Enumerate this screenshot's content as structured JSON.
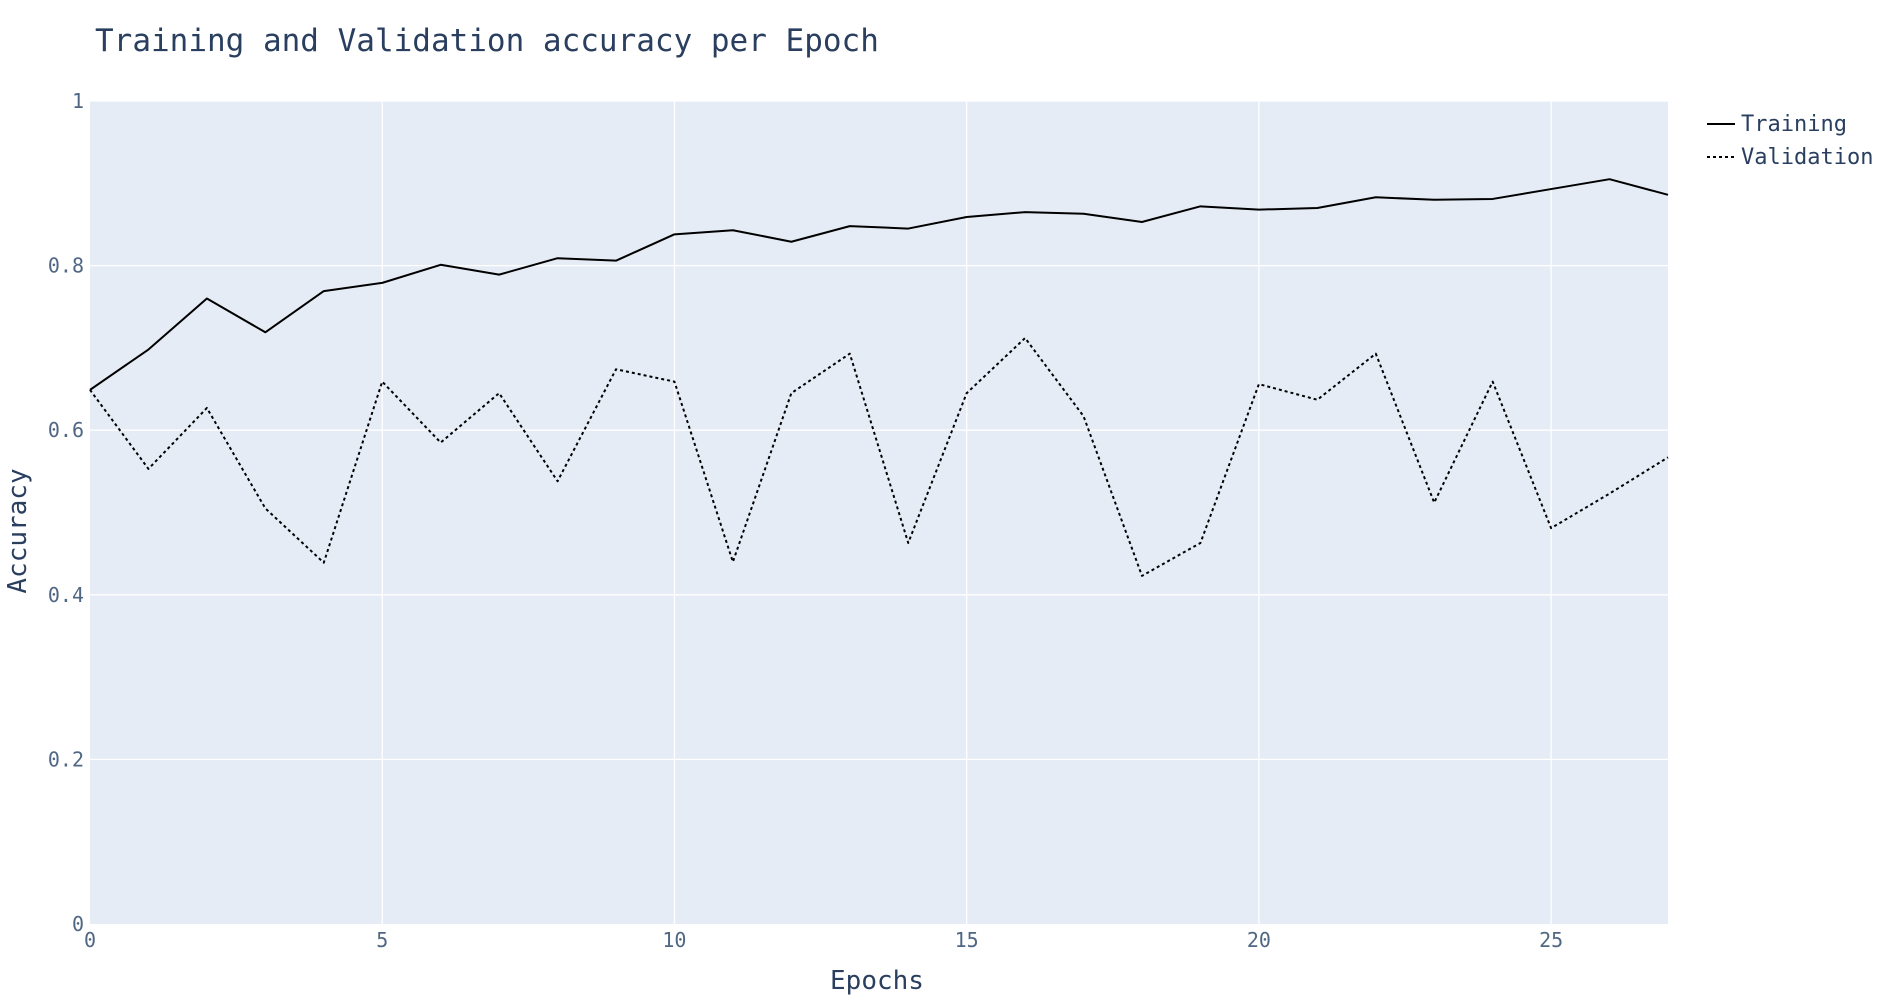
{
  "chart_data": {
    "type": "line",
    "title": "Training and Validation accuracy per Epoch",
    "xlabel": "Epochs",
    "ylabel": "Accuracy",
    "xlim": [
      0,
      27
    ],
    "ylim": [
      0,
      1
    ],
    "xticks": [
      0,
      5,
      10,
      15,
      20,
      25
    ],
    "xtick_labels": [
      "0",
      "5",
      "10",
      "15",
      "20",
      "25"
    ],
    "yticks": [
      0,
      0.2,
      0.4,
      0.6,
      0.8,
      1
    ],
    "ytick_labels": [
      "0",
      "0.2",
      "0.4",
      "0.6",
      "0.8",
      "1"
    ],
    "grid": true,
    "legend_position": "top-right",
    "x": [
      0,
      1,
      2,
      3,
      4,
      5,
      6,
      7,
      8,
      9,
      10,
      11,
      12,
      13,
      14,
      15,
      16,
      17,
      18,
      19,
      20,
      21,
      22,
      23,
      24,
      25,
      26,
      27
    ],
    "series": [
      {
        "name": "Training",
        "dash": "solid",
        "color": "#000000",
        "values": [
          0.649,
          0.698,
          0.76,
          0.719,
          0.769,
          0.779,
          0.801,
          0.789,
          0.809,
          0.806,
          0.838,
          0.843,
          0.829,
          0.848,
          0.845,
          0.859,
          0.865,
          0.863,
          0.853,
          0.872,
          0.868,
          0.87,
          0.883,
          0.88,
          0.881,
          0.893,
          0.905,
          0.886
        ]
      },
      {
        "name": "Validation",
        "dash": "dot",
        "color": "#000000",
        "values": [
          0.649,
          0.553,
          0.627,
          0.505,
          0.439,
          0.659,
          0.585,
          0.645,
          0.538,
          0.674,
          0.659,
          0.44,
          0.645,
          0.693,
          0.463,
          0.645,
          0.712,
          0.617,
          0.423,
          0.463,
          0.656,
          0.637,
          0.693,
          0.512,
          0.659,
          0.481,
          0.523,
          0.567
        ]
      }
    ]
  }
}
